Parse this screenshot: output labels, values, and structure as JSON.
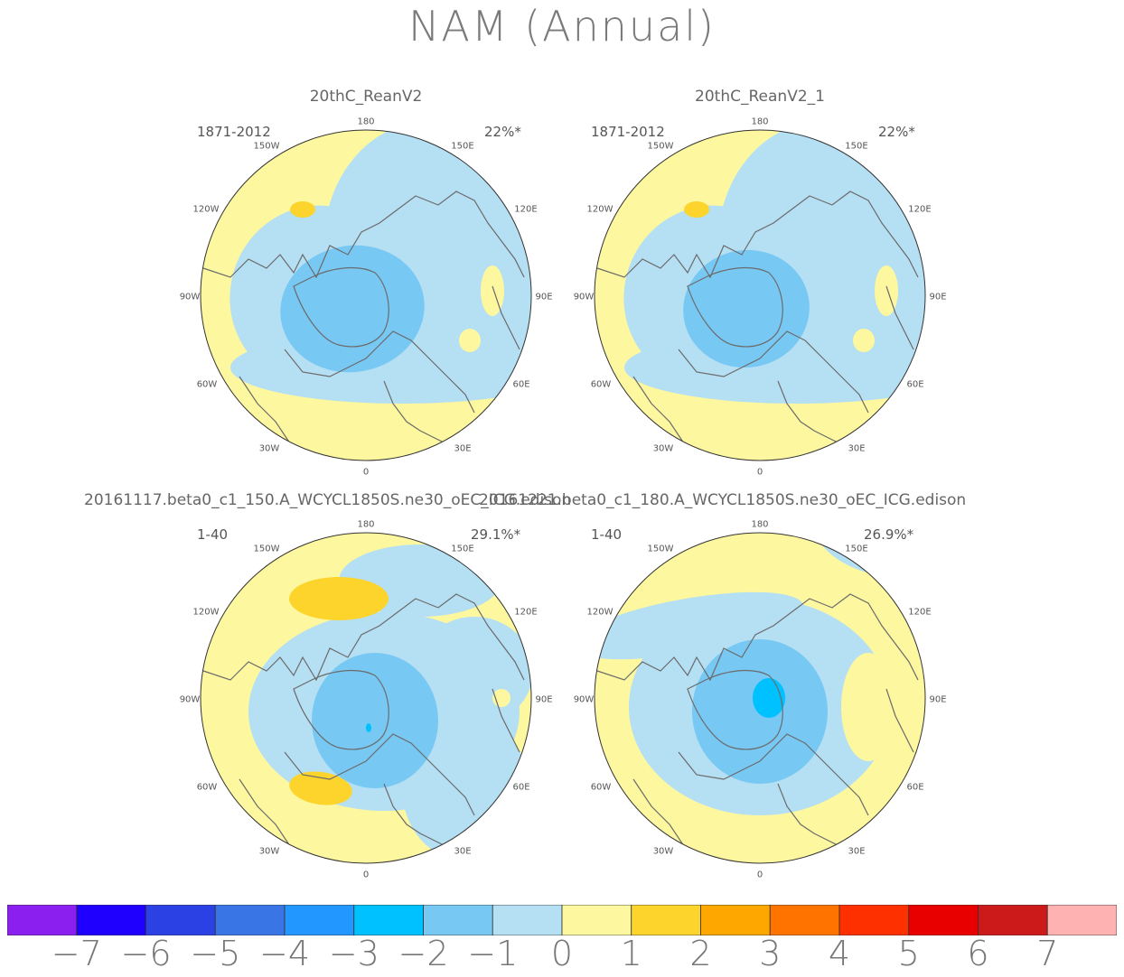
{
  "title": "NAM (Annual)",
  "chart_data": {
    "type": "contour-map",
    "projection": "polar-stereographic north",
    "longitude_labels": [
      "180",
      "150E",
      "120E",
      "90E",
      "60E",
      "30E",
      "0",
      "30W",
      "60W",
      "90W",
      "120W",
      "150W"
    ],
    "panels": [
      {
        "title": "20thC_ReanV2",
        "period": "1871-2012",
        "variance_explained": "22%*"
      },
      {
        "title": "20thC_ReanV2_1",
        "period": "1871-2012",
        "variance_explained": "22%*"
      },
      {
        "title": "20161117.beta0_c1_150.A_WCYCL1850S.ne30_oEC_ICG.edison",
        "period": "1-40",
        "variance_explained": "29.1%*"
      },
      {
        "title": "20161221.beta0_c1_180.A_WCYCL1850S.ne30_oEC_ICG.edison",
        "period": "1-40",
        "variance_explained": "26.9%*"
      }
    ],
    "colorbar": {
      "levels": [
        "-7",
        "-6",
        "-5",
        "-4",
        "-3",
        "-2",
        "-1",
        "0",
        "1",
        "2",
        "3",
        "4",
        "5",
        "6",
        "7"
      ],
      "colors": [
        "#8a1ff0",
        "#1f00ff",
        "#2c41e3",
        "#3a75e6",
        "#2197ff",
        "#00c1ff",
        "#78c8f4",
        "#b5dff3",
        "#fdf7a0",
        "#fdd42c",
        "#fda700",
        "#ff7400",
        "#ff3000",
        "#e80000",
        "#cc1a1a",
        "#ffb2b2"
      ]
    }
  }
}
